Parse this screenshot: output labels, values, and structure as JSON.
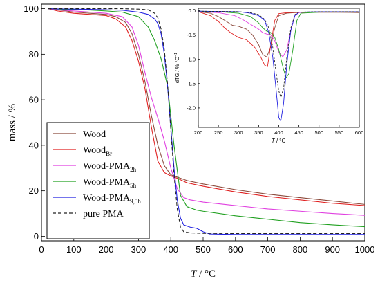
{
  "chart_data": [
    {
      "type": "line",
      "xlabel_var": "T",
      "xlabel_unit": " / °C",
      "ylabel": "mass / %",
      "xlim": [
        0,
        1000
      ],
      "ylim": [
        -2,
        102
      ],
      "xticks": [
        0,
        100,
        200,
        300,
        400,
        500,
        600,
        700,
        800,
        900,
        1000
      ],
      "yticks": [
        0,
        20,
        40,
        60,
        80,
        100
      ],
      "grid": false,
      "legend_position": "lower-left",
      "series": [
        {
          "name": "Wood",
          "name_sub": "",
          "color": "#8b4a3c",
          "dash": "solid",
          "x": [
            20,
            50,
            100,
            150,
            200,
            230,
            260,
            280,
            300,
            320,
            340,
            360,
            380,
            400,
            420,
            450,
            500,
            600,
            700,
            800,
            900,
            1000
          ],
          "y": [
            100,
            99.5,
            98.5,
            98,
            97.5,
            96.5,
            94,
            89,
            80,
            68,
            53,
            40,
            31,
            27,
            26,
            24.5,
            23,
            20.5,
            18.5,
            17,
            15.5,
            14
          ]
        },
        {
          "name": "Wood",
          "name_sub": "Br",
          "color": "#e02020",
          "dash": "solid",
          "x": [
            20,
            50,
            100,
            150,
            200,
            230,
            260,
            280,
            300,
            320,
            340,
            360,
            380,
            400,
            420,
            450,
            500,
            600,
            700,
            800,
            900,
            1000
          ],
          "y": [
            100,
            99,
            98,
            97.5,
            97,
            95.5,
            92,
            86,
            77,
            65,
            48,
            33,
            28,
            26.5,
            25.5,
            23.5,
            22,
            19.5,
            17.5,
            16,
            14.5,
            13.5
          ]
        },
        {
          "name": "Wood-PMA",
          "name_sub": "2h",
          "color": "#e040e0",
          "dash": "solid",
          "x": [
            20,
            50,
            100,
            150,
            200,
            250,
            280,
            300,
            320,
            340,
            360,
            380,
            400,
            420,
            440,
            460,
            500,
            600,
            700,
            800,
            900,
            1000
          ],
          "y": [
            100,
            99.5,
            99,
            98.5,
            98,
            96.5,
            92,
            84,
            72,
            61,
            52,
            42,
            30,
            21,
            17,
            16,
            15,
            13.5,
            12,
            11,
            10,
            9.2
          ]
        },
        {
          "name": "Wood-PMA",
          "name_sub": "5h",
          "color": "#20a020",
          "dash": "solid",
          "x": [
            20,
            50,
            100,
            150,
            200,
            250,
            300,
            330,
            350,
            370,
            390,
            410,
            430,
            450,
            480,
            500,
            600,
            700,
            800,
            900,
            1000
          ],
          "y": [
            100,
            99.8,
            99.6,
            99.4,
            99,
            98.5,
            96.5,
            92,
            86,
            78,
            66,
            40,
            18,
            13,
            11.5,
            11,
            9,
            7.5,
            6,
            5,
            4.2
          ]
        },
        {
          "name": "Wood-PMA",
          "name_sub": "9,5h",
          "color": "#2020e0",
          "dash": "solid",
          "x": [
            20,
            50,
            100,
            150,
            200,
            250,
            300,
            330,
            350,
            360,
            370,
            380,
            390,
            400,
            410,
            420,
            430,
            440,
            460,
            480,
            500,
            520,
            600,
            700,
            800,
            900,
            1000
          ],
          "y": [
            100,
            99.9,
            99.8,
            99.7,
            99.5,
            99.3,
            98.5,
            97.5,
            95.5,
            93.5,
            89,
            80,
            66,
            48,
            30,
            16,
            8,
            5,
            4,
            3.5,
            2,
            1,
            0.8,
            0.8,
            0.8,
            0.8,
            0.8
          ]
        },
        {
          "name": "pure PMA",
          "name_sub": "",
          "color": "#222222",
          "dash": "dashed",
          "x": [
            20,
            50,
            100,
            150,
            200,
            250,
            300,
            330,
            350,
            360,
            370,
            380,
            390,
            400,
            410,
            420,
            430,
            440,
            460,
            500,
            600,
            700,
            800,
            900,
            1000
          ],
          "y": [
            100,
            100,
            100,
            100,
            100,
            100,
            99.8,
            99.5,
            98,
            96,
            91,
            82,
            67,
            47,
            27,
            12,
            4,
            2,
            1.5,
            1.3,
            1.2,
            1.2,
            1.2,
            1.2,
            1.2
          ]
        }
      ]
    },
    {
      "type": "line",
      "xlabel_var": "T",
      "xlabel_unit": " / °C",
      "ylabel": "dTG / % °C",
      "ylabel_sup": "−1",
      "xlim": [
        200,
        600
      ],
      "ylim": [
        -2.4,
        0.05
      ],
      "xticks": [
        200,
        250,
        300,
        350,
        400,
        450,
        500,
        550,
        600
      ],
      "yticks": [
        0.0,
        -0.5,
        -1.0,
        -1.5,
        -2.0
      ],
      "ytick_labels": [
        "0.0",
        "-0.5",
        "-1.0",
        "-1.5",
        "-2.0"
      ],
      "grid": false,
      "series": [
        {
          "name": "Wood",
          "color": "#8b4a3c",
          "dash": "solid",
          "x": [
            200,
            230,
            250,
            270,
            285,
            300,
            320,
            335,
            350,
            360,
            370,
            380,
            390,
            400,
            420,
            440,
            470,
            500,
            550,
            600
          ],
          "y": [
            -0.02,
            -0.05,
            -0.12,
            -0.22,
            -0.3,
            -0.32,
            -0.38,
            -0.5,
            -0.7,
            -0.9,
            -0.95,
            -0.75,
            -0.35,
            -0.1,
            -0.05,
            -0.04,
            -0.03,
            -0.03,
            -0.03,
            -0.04
          ]
        },
        {
          "name": "Wood Br",
          "color": "#e02020",
          "dash": "solid",
          "x": [
            200,
            230,
            250,
            265,
            280,
            300,
            320,
            340,
            355,
            365,
            372,
            380,
            390,
            400,
            420,
            450,
            500,
            550,
            600
          ],
          "y": [
            -0.02,
            -0.1,
            -0.22,
            -0.35,
            -0.45,
            -0.55,
            -0.6,
            -0.75,
            -0.95,
            -1.12,
            -1.15,
            -0.7,
            -0.2,
            -0.06,
            -0.04,
            -0.03,
            -0.03,
            -0.03,
            -0.03
          ]
        },
        {
          "name": "Wood-PMA 2h",
          "color": "#e040e0",
          "dash": "solid",
          "x": [
            200,
            250,
            290,
            310,
            330,
            350,
            360,
            370,
            380,
            390,
            400,
            410,
            420,
            430,
            440,
            450,
            460,
            500,
            600
          ],
          "y": [
            -0.02,
            -0.04,
            -0.1,
            -0.18,
            -0.28,
            -0.38,
            -0.45,
            -0.48,
            -0.5,
            -0.62,
            -0.85,
            -0.95,
            -0.8,
            -0.4,
            -0.1,
            -0.04,
            -0.03,
            -0.03,
            -0.03
          ]
        },
        {
          "name": "Wood-PMA 5h",
          "color": "#20a020",
          "dash": "solid",
          "x": [
            200,
            250,
            300,
            330,
            350,
            360,
            370,
            380,
            390,
            400,
            410,
            418,
            425,
            435,
            445,
            455,
            500,
            600
          ],
          "y": [
            -0.01,
            -0.02,
            -0.05,
            -0.12,
            -0.25,
            -0.35,
            -0.42,
            -0.45,
            -0.55,
            -0.8,
            -1.15,
            -1.38,
            -1.3,
            -0.8,
            -0.2,
            -0.05,
            -0.03,
            -0.03
          ]
        },
        {
          "name": "Wood-PMA 9,5h",
          "color": "#2020e0",
          "dash": "solid",
          "x": [
            200,
            300,
            330,
            350,
            365,
            375,
            385,
            393,
            400,
            405,
            412,
            420,
            430,
            440,
            450,
            500,
            600
          ],
          "y": [
            -0.01,
            -0.02,
            -0.05,
            -0.1,
            -0.2,
            -0.45,
            -0.95,
            -1.6,
            -2.2,
            -2.27,
            -1.9,
            -1.1,
            -0.4,
            -0.1,
            -0.03,
            -0.02,
            -0.02
          ]
        },
        {
          "name": "pure PMA",
          "color": "#222222",
          "dash": "dashed",
          "x": [
            200,
            300,
            330,
            350,
            365,
            375,
            385,
            393,
            400,
            405,
            412,
            420,
            430,
            440,
            450,
            500,
            600
          ],
          "y": [
            -0.01,
            -0.02,
            -0.04,
            -0.08,
            -0.18,
            -0.35,
            -0.75,
            -1.25,
            -1.65,
            -1.78,
            -1.6,
            -0.95,
            -0.35,
            -0.08,
            -0.03,
            -0.02,
            -0.02
          ]
        }
      ]
    }
  ]
}
